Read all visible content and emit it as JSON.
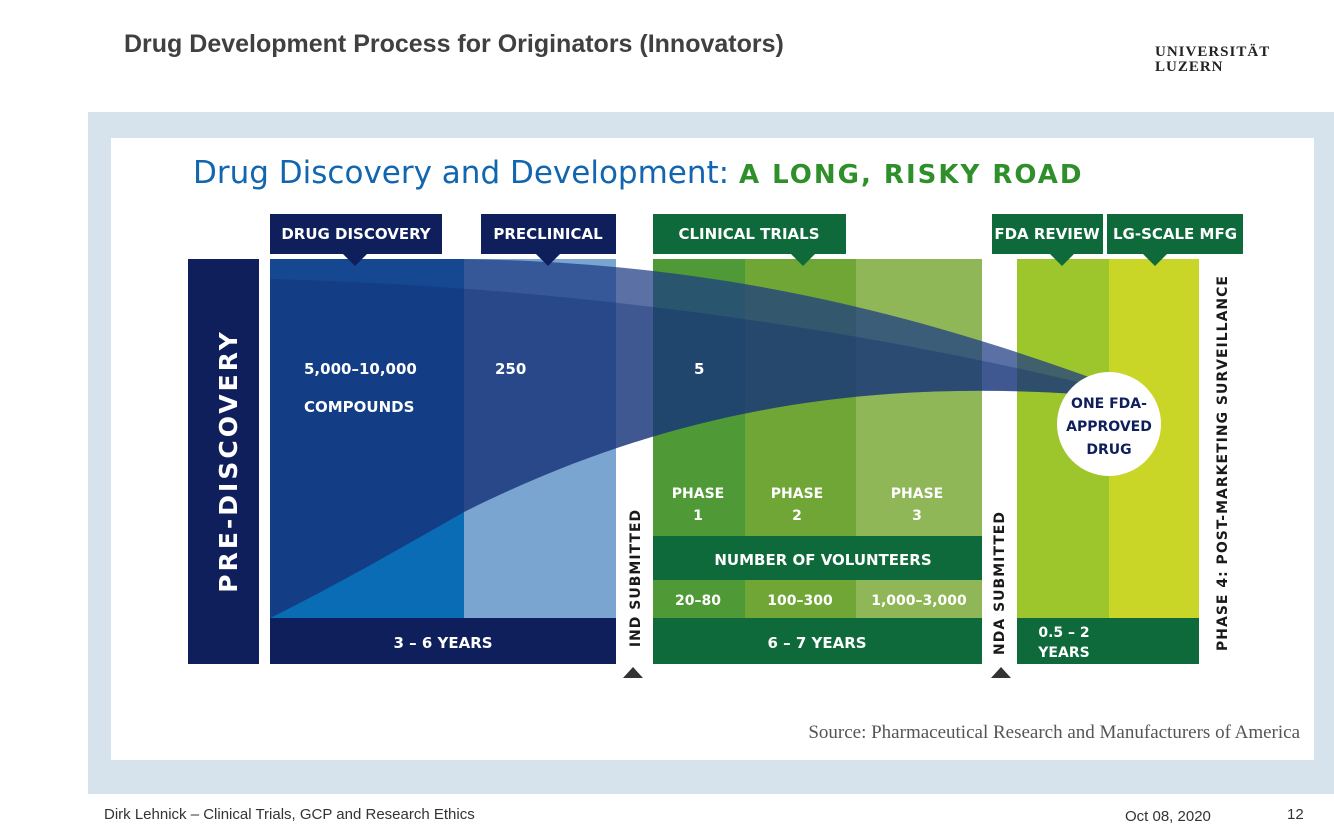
{
  "slide": {
    "title": "Drug Development Process for Originators (Innovators)",
    "logo_line1": "UNIVERSITÄT",
    "logo_line2": "LUZERN",
    "footer_left": "Dirk Lehnick – Clinical Trials, GCP and Research Ethics",
    "footer_date": "Oct 08, 2020",
    "page_number": "12"
  },
  "figure": {
    "title_main": "Drug Discovery and Development:",
    "title_sub": "A LONG, RISKY ROAD",
    "prediscovery": "PRE-DISCOVERY",
    "tabs": {
      "drug_discovery": "DRUG DISCOVERY",
      "preclinical": "PRECLINICAL",
      "clinical_trials": "CLINICAL TRIALS",
      "fda_review": "FDA REVIEW",
      "lg_scale_mfg": "LG-SCALE MFG"
    },
    "counts": {
      "compounds_number": "5,000–10,000",
      "compounds_label": "COMPOUNDS",
      "preclinical": "250",
      "clinical": "5"
    },
    "approved": [
      "ONE FDA-",
      "APPROVED",
      "DRUG"
    ],
    "phases": [
      {
        "label": "PHASE",
        "num": "1",
        "volunteers": "20–80"
      },
      {
        "label": "PHASE",
        "num": "2",
        "volunteers": "100–300"
      },
      {
        "label": "PHASE",
        "num": "3",
        "volunteers": "1,000–3,000"
      }
    ],
    "number_of_volunteers": "NUMBER OF VOLUNTEERS",
    "durations": {
      "discovery": "3 – 6 YEARS",
      "clinical": "6 – 7 YEARS",
      "review_line1": "0.5 – 2",
      "review_line2": "YEARS"
    },
    "ind_submitted": "IND SUBMITTED",
    "nda_submitted": "NDA SUBMITTED",
    "phase4": "PHASE 4: POST-MARKETING SURVEILLANCE",
    "source": "Source: Pharmaceutical Research and Manufacturers of America",
    "colors": {
      "navy": "#0f1f5c",
      "blue": "#0a6cb4",
      "light_blue": "#79a5d0",
      "dark_green": "#0e6a3a",
      "green": "#5ea639",
      "lime": "#9dc52c",
      "yellow_green": "#c9d628",
      "title_blue": "#1266b0",
      "title_green": "#2f8f2a"
    }
  }
}
